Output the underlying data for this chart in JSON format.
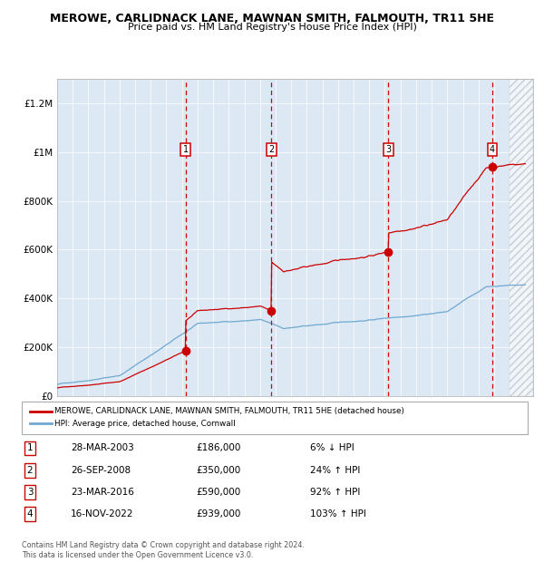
{
  "title": "MEROWE, CARLIDNACK LANE, MAWNAN SMITH, FALMOUTH, TR11 5HE",
  "subtitle": "Price paid vs. HM Land Registry's House Price Index (HPI)",
  "bg_color": "#dce9f5",
  "red_line_color": "#cc0000",
  "blue_line_color": "#6fa8d0",
  "sale_dates_year": [
    2003.23,
    2008.73,
    2016.23,
    2022.88
  ],
  "sale_prices": [
    186000,
    350000,
    590000,
    939000
  ],
  "sale_labels": [
    "1",
    "2",
    "3",
    "4"
  ],
  "sale_annotations": [
    {
      "num": "1",
      "date": "28-MAR-2003",
      "price": "£186,000",
      "change": "6% ↓ HPI"
    },
    {
      "num": "2",
      "date": "26-SEP-2008",
      "price": "£350,000",
      "change": "24% ↑ HPI"
    },
    {
      "num": "3",
      "date": "23-MAR-2016",
      "price": "£590,000",
      "change": "92% ↑ HPI"
    },
    {
      "num": "4",
      "date": "16-NOV-2022",
      "price": "£939,000",
      "change": "103% ↑ HPI"
    }
  ],
  "ylim": [
    0,
    1300000
  ],
  "xlim_start": 1995.0,
  "xlim_end": 2025.5,
  "yticks": [
    0,
    200000,
    400000,
    600000,
    800000,
    1000000,
    1200000
  ],
  "ytick_labels": [
    "£0",
    "£200K",
    "£400K",
    "£600K",
    "£800K",
    "£1M",
    "£1.2M"
  ],
  "xticks": [
    1995,
    1996,
    1997,
    1998,
    1999,
    2000,
    2001,
    2002,
    2003,
    2004,
    2005,
    2006,
    2007,
    2008,
    2009,
    2010,
    2011,
    2012,
    2013,
    2014,
    2015,
    2016,
    2017,
    2018,
    2019,
    2020,
    2021,
    2022,
    2023,
    2024,
    2025
  ],
  "legend_red_label": "MEROWE, CARLIDNACK LANE, MAWNAN SMITH, FALMOUTH, TR11 5HE (detached house)",
  "legend_blue_label": "HPI: Average price, detached house, Cornwall",
  "footer": "Contains HM Land Registry data © Crown copyright and database right 2024.\nThis data is licensed under the Open Government Licence v3.0.",
  "hatch_start": 2024.0
}
